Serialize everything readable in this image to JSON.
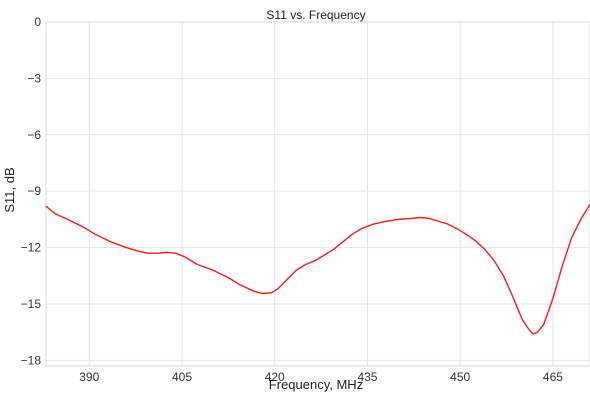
{
  "chart_data": {
    "type": "line",
    "title": "S11 vs. Frequency",
    "xlabel": "Frequency, MHz",
    "ylabel": "S11, dB",
    "xlim": [
      383,
      471
    ],
    "ylim": [
      -18.3,
      0
    ],
    "xticks": [
      390,
      405,
      420,
      435,
      450,
      465
    ],
    "yticks": [
      0,
      -3,
      -6,
      -9,
      -12,
      -15,
      -18
    ],
    "ytick_labels": [
      "0",
      "−3",
      "−6",
      "−9",
      "−12",
      "−15",
      "−18"
    ],
    "grid": true,
    "series": [
      {
        "color": "#ff1a1a",
        "x": [
          383,
          384.5,
          386.5,
          389,
          391,
          393.5,
          396,
          398,
          399.5,
          401,
          402.5,
          404,
          405.5,
          407.5,
          410,
          412.5,
          414.5,
          416.5,
          418,
          419.5,
          420.5,
          422,
          423.5,
          425,
          426.5,
          428,
          429.5,
          431,
          432.5,
          434,
          436,
          438,
          440,
          442,
          443.5,
          445,
          446.5,
          448,
          449.5,
          451,
          452.5,
          454,
          455.5,
          457,
          458.5,
          460,
          461,
          461.8,
          462.5,
          463.5,
          465,
          466.5,
          468,
          469.5,
          471
        ],
        "y": [
          -9.8,
          -10.2,
          -10.5,
          -10.9,
          -11.3,
          -11.7,
          -12.0,
          -12.2,
          -12.3,
          -12.3,
          -12.25,
          -12.3,
          -12.5,
          -12.9,
          -13.2,
          -13.6,
          -14.0,
          -14.3,
          -14.45,
          -14.4,
          -14.2,
          -13.7,
          -13.2,
          -12.9,
          -12.7,
          -12.4,
          -12.1,
          -11.7,
          -11.3,
          -11.0,
          -10.75,
          -10.6,
          -10.5,
          -10.45,
          -10.4,
          -10.45,
          -10.6,
          -10.75,
          -11.0,
          -11.3,
          -11.65,
          -12.1,
          -12.7,
          -13.5,
          -14.6,
          -15.8,
          -16.3,
          -16.6,
          -16.5,
          -16.1,
          -14.7,
          -13.0,
          -11.5,
          -10.5,
          -9.7
        ]
      }
    ]
  }
}
